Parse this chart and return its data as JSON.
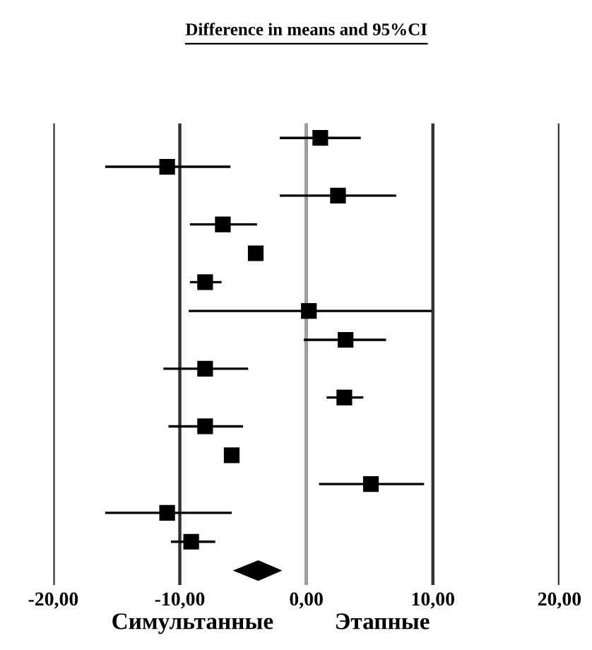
{
  "chart_data": {
    "type": "scatter",
    "orientation": "horizontal",
    "title": "Difference in means and 95%CI",
    "categories": [
      null,
      null,
      null,
      null,
      null,
      null,
      null,
      null,
      null,
      null,
      null,
      null,
      null,
      null,
      null,
      null
    ],
    "series": [
      {
        "marker": "square",
        "color": "#000000",
        "values": [
          1.1,
          -11.0,
          2.5,
          -6.6,
          -4.0,
          -8.0,
          0.2,
          3.1,
          -8.0,
          3.0,
          -8.0,
          -5.9,
          5.1,
          -11.0,
          -9.1,
          null
        ],
        "errors": [
          [
            -2.1,
            4.3
          ],
          [
            -15.9,
            -6.0
          ],
          [
            -2.1,
            7.1
          ],
          [
            -9.2,
            -3.9
          ],
          null,
          [
            -9.2,
            -6.7
          ],
          [
            -9.3,
            9.9
          ],
          [
            -0.2,
            6.3
          ],
          [
            -11.3,
            -4.6
          ],
          [
            1.6,
            4.5
          ],
          [
            -10.9,
            -5.0
          ],
          null,
          [
            1.0,
            9.3
          ],
          [
            -15.9,
            -5.9
          ],
          [
            -10.7,
            -7.2
          ],
          null
        ]
      },
      {
        "marker": "diamond",
        "color": "#000000",
        "values": [
          null,
          null,
          null,
          null,
          null,
          null,
          null,
          null,
          null,
          null,
          null,
          null,
          null,
          null,
          null,
          -3.8
        ],
        "errors": [
          null,
          null,
          null,
          null,
          null,
          null,
          null,
          null,
          null,
          null,
          null,
          null,
          null,
          null,
          null,
          [
            -5.6,
            -2.1
          ]
        ]
      }
    ],
    "xlim": [
      -20,
      20
    ],
    "xticks": [
      {
        "value": -20,
        "label": "-20,00"
      },
      {
        "value": -10,
        "label": "-10,00"
      },
      {
        "value": 0,
        "label": "0,00"
      },
      {
        "value": 10,
        "label": "10,00"
      },
      {
        "value": 20,
        "label": "20,00"
      }
    ],
    "grid": "x",
    "ref_lines": [
      {
        "axis": "x",
        "value": 0,
        "color": "#a0a0a0"
      }
    ],
    "annotations": [
      "Симультанные",
      "Этапные"
    ]
  }
}
